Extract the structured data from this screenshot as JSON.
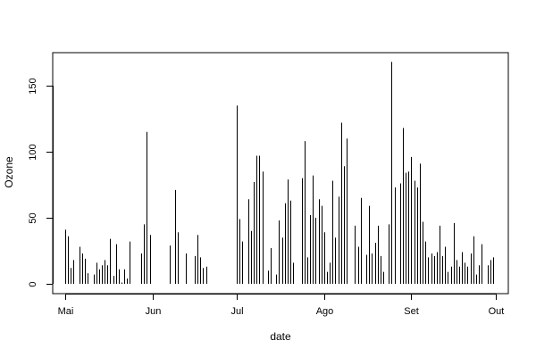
{
  "chart_data": {
    "type": "bar",
    "style": "vertical-lines",
    "title": "",
    "xlabel": "date",
    "ylabel": "Ozone",
    "x_axis": {
      "type": "date",
      "start": "1973-05-01",
      "end": "1973-10-01"
    },
    "ylim": [
      0,
      175
    ],
    "y_ticks": [
      0,
      50,
      100,
      150
    ],
    "x_ticks": [
      {
        "label": "Mai",
        "date": "1973-05-01"
      },
      {
        "label": "Jun",
        "date": "1973-06-01"
      },
      {
        "label": "Jul",
        "date": "1973-07-01"
      },
      {
        "label": "Ago",
        "date": "1973-08-01"
      },
      {
        "label": "Set",
        "date": "1973-09-01"
      },
      {
        "label": "Out",
        "date": "1973-10-01"
      }
    ],
    "series": [
      {
        "name": "Ozone",
        "color": "#000000",
        "points": [
          {
            "date": "1973-05-01",
            "value": 41
          },
          {
            "date": "1973-05-02",
            "value": 36
          },
          {
            "date": "1973-05-03",
            "value": 12
          },
          {
            "date": "1973-05-04",
            "value": 18
          },
          {
            "date": "1973-05-06",
            "value": 28
          },
          {
            "date": "1973-05-07",
            "value": 23
          },
          {
            "date": "1973-05-08",
            "value": 19
          },
          {
            "date": "1973-05-09",
            "value": 8
          },
          {
            "date": "1973-05-11",
            "value": 7
          },
          {
            "date": "1973-05-12",
            "value": 16
          },
          {
            "date": "1973-05-13",
            "value": 11
          },
          {
            "date": "1973-05-14",
            "value": 14
          },
          {
            "date": "1973-05-15",
            "value": 18
          },
          {
            "date": "1973-05-16",
            "value": 14
          },
          {
            "date": "1973-05-17",
            "value": 34
          },
          {
            "date": "1973-05-18",
            "value": 6
          },
          {
            "date": "1973-05-19",
            "value": 30
          },
          {
            "date": "1973-05-20",
            "value": 11
          },
          {
            "date": "1973-05-21",
            "value": 1
          },
          {
            "date": "1973-05-22",
            "value": 11
          },
          {
            "date": "1973-05-23",
            "value": 4
          },
          {
            "date": "1973-05-24",
            "value": 32
          },
          {
            "date": "1973-05-28",
            "value": 23
          },
          {
            "date": "1973-05-29",
            "value": 45
          },
          {
            "date": "1973-05-30",
            "value": 115
          },
          {
            "date": "1973-05-31",
            "value": 37
          },
          {
            "date": "1973-06-07",
            "value": 29
          },
          {
            "date": "1973-06-09",
            "value": 71
          },
          {
            "date": "1973-06-10",
            "value": 39
          },
          {
            "date": "1973-06-13",
            "value": 23
          },
          {
            "date": "1973-06-16",
            "value": 21
          },
          {
            "date": "1973-06-17",
            "value": 37
          },
          {
            "date": "1973-06-18",
            "value": 20
          },
          {
            "date": "1973-06-19",
            "value": 12
          },
          {
            "date": "1973-06-20",
            "value": 13
          },
          {
            "date": "1973-07-01",
            "value": 135
          },
          {
            "date": "1973-07-02",
            "value": 49
          },
          {
            "date": "1973-07-03",
            "value": 32
          },
          {
            "date": "1973-07-05",
            "value": 64
          },
          {
            "date": "1973-07-06",
            "value": 40
          },
          {
            "date": "1973-07-07",
            "value": 77
          },
          {
            "date": "1973-07-08",
            "value": 97
          },
          {
            "date": "1973-07-09",
            "value": 97
          },
          {
            "date": "1973-07-10",
            "value": 85
          },
          {
            "date": "1973-07-12",
            "value": 10
          },
          {
            "date": "1973-07-13",
            "value": 27
          },
          {
            "date": "1973-07-15",
            "value": 7
          },
          {
            "date": "1973-07-16",
            "value": 48
          },
          {
            "date": "1973-07-17",
            "value": 35
          },
          {
            "date": "1973-07-18",
            "value": 61
          },
          {
            "date": "1973-07-19",
            "value": 79
          },
          {
            "date": "1973-07-20",
            "value": 63
          },
          {
            "date": "1973-07-21",
            "value": 16
          },
          {
            "date": "1973-07-24",
            "value": 80
          },
          {
            "date": "1973-07-25",
            "value": 108
          },
          {
            "date": "1973-07-26",
            "value": 20
          },
          {
            "date": "1973-07-27",
            "value": 52
          },
          {
            "date": "1973-07-28",
            "value": 82
          },
          {
            "date": "1973-07-29",
            "value": 50
          },
          {
            "date": "1973-07-30",
            "value": 64
          },
          {
            "date": "1973-07-31",
            "value": 59
          },
          {
            "date": "1973-08-01",
            "value": 39
          },
          {
            "date": "1973-08-02",
            "value": 9
          },
          {
            "date": "1973-08-03",
            "value": 16
          },
          {
            "date": "1973-08-04",
            "value": 78
          },
          {
            "date": "1973-08-05",
            "value": 35
          },
          {
            "date": "1973-08-06",
            "value": 66
          },
          {
            "date": "1973-08-07",
            "value": 122
          },
          {
            "date": "1973-08-08",
            "value": 89
          },
          {
            "date": "1973-08-09",
            "value": 110
          },
          {
            "date": "1973-08-12",
            "value": 44
          },
          {
            "date": "1973-08-13",
            "value": 28
          },
          {
            "date": "1973-08-14",
            "value": 65
          },
          {
            "date": "1973-08-16",
            "value": 22
          },
          {
            "date": "1973-08-17",
            "value": 59
          },
          {
            "date": "1973-08-18",
            "value": 23
          },
          {
            "date": "1973-08-19",
            "value": 31
          },
          {
            "date": "1973-08-20",
            "value": 44
          },
          {
            "date": "1973-08-21",
            "value": 21
          },
          {
            "date": "1973-08-22",
            "value": 9
          },
          {
            "date": "1973-08-24",
            "value": 45
          },
          {
            "date": "1973-08-25",
            "value": 168
          },
          {
            "date": "1973-08-26",
            "value": 73
          },
          {
            "date": "1973-08-28",
            "value": 76
          },
          {
            "date": "1973-08-29",
            "value": 118
          },
          {
            "date": "1973-08-30",
            "value": 84
          },
          {
            "date": "1973-08-31",
            "value": 85
          },
          {
            "date": "1973-09-01",
            "value": 96
          },
          {
            "date": "1973-09-02",
            "value": 78
          },
          {
            "date": "1973-09-03",
            "value": 73
          },
          {
            "date": "1973-09-04",
            "value": 91
          },
          {
            "date": "1973-09-05",
            "value": 47
          },
          {
            "date": "1973-09-06",
            "value": 32
          },
          {
            "date": "1973-09-07",
            "value": 20
          },
          {
            "date": "1973-09-08",
            "value": 23
          },
          {
            "date": "1973-09-09",
            "value": 21
          },
          {
            "date": "1973-09-10",
            "value": 24
          },
          {
            "date": "1973-09-11",
            "value": 44
          },
          {
            "date": "1973-09-12",
            "value": 21
          },
          {
            "date": "1973-09-13",
            "value": 28
          },
          {
            "date": "1973-09-14",
            "value": 9
          },
          {
            "date": "1973-09-15",
            "value": 13
          },
          {
            "date": "1973-09-16",
            "value": 46
          },
          {
            "date": "1973-09-17",
            "value": 18
          },
          {
            "date": "1973-09-18",
            "value": 13
          },
          {
            "date": "1973-09-19",
            "value": 24
          },
          {
            "date": "1973-09-20",
            "value": 16
          },
          {
            "date": "1973-09-21",
            "value": 13
          },
          {
            "date": "1973-09-22",
            "value": 23
          },
          {
            "date": "1973-09-23",
            "value": 36
          },
          {
            "date": "1973-09-24",
            "value": 7
          },
          {
            "date": "1973-09-25",
            "value": 14
          },
          {
            "date": "1973-09-26",
            "value": 30
          },
          {
            "date": "1973-09-28",
            "value": 14
          },
          {
            "date": "1973-09-29",
            "value": 18
          },
          {
            "date": "1973-09-30",
            "value": 20
          }
        ]
      }
    ]
  }
}
